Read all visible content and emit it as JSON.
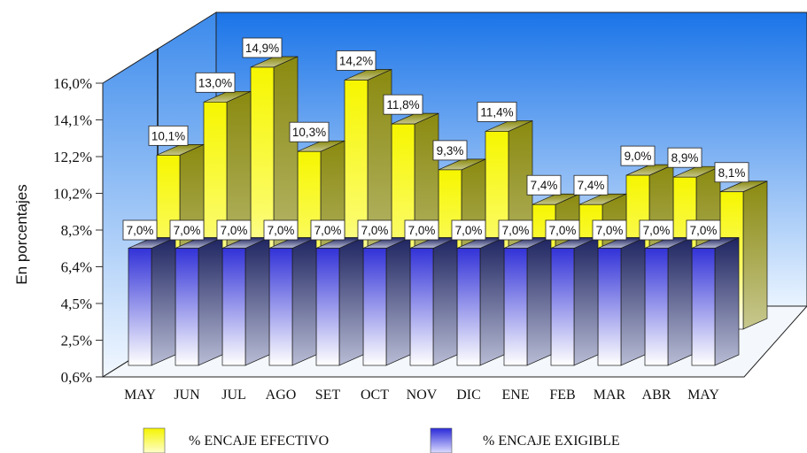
{
  "chart_data": {
    "type": "bar",
    "title": "",
    "ylabel": "En porcentajes",
    "xlabel": "",
    "yticks": [
      "0,6%",
      "2,5%",
      "4,5%",
      "6,4%",
      "8,3%",
      "10,2%",
      "12,2%",
      "14,1%",
      "16,0%"
    ],
    "ylim": [
      0.6,
      16.0
    ],
    "categories": [
      "MAY",
      "JUN",
      "JUL",
      "AGO",
      "SET",
      "OCT",
      "NOV",
      "DIC",
      "ENE",
      "FEB",
      "MAR",
      "ABR",
      "MAY"
    ],
    "series": [
      {
        "name": "% ENCAJE EXIGIBLE",
        "values": [
          7.0,
          7.0,
          7.0,
          7.0,
          7.0,
          7.0,
          7.0,
          7.0,
          7.0,
          7.0,
          7.0,
          7.0,
          7.0
        ],
        "labels": [
          "7,0%",
          "7,0%",
          "7,0%",
          "7,0%",
          "7,0%",
          "7,0%",
          "7,0%",
          "7,0%",
          "7,0%",
          "7,0%",
          "7,0%",
          "7,0%",
          "7,0%"
        ],
        "color": "#3a3ad8"
      },
      {
        "name": "% ENCAJE EFECTIVO",
        "values": [
          10.1,
          13.0,
          14.9,
          10.3,
          14.2,
          11.8,
          9.3,
          11.4,
          7.4,
          7.4,
          9.0,
          8.9,
          8.1
        ],
        "labels": [
          "10,1%",
          "13,0%",
          "14,9%",
          "10,3%",
          "14,2%",
          "11,8%",
          "9,3%",
          "11,4%",
          "7,4%",
          "7,4%",
          "9,0%",
          "8,9%",
          "8,1%"
        ],
        "color": "#f4f400"
      }
    ],
    "legend": {
      "position": "bottom",
      "items": [
        "% ENCAJE EFECTIVO",
        "% ENCAJE EXIGIBLE"
      ]
    },
    "grid": false,
    "colors": {
      "wall_top": "#1a74e8",
      "wall_bottom": "#e8f4ff",
      "front_yellow": "#f4f400",
      "side_yellow": "#7a7a10",
      "front_blue": "#3a3ad8",
      "side_blue": "#242a6a"
    }
  }
}
